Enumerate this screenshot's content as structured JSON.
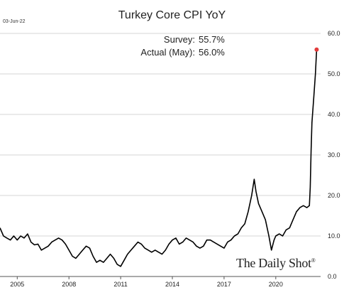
{
  "header": {
    "date": "03-Jun-22"
  },
  "annotations": {
    "survey_label": "Survey:",
    "survey_value": "55.7%",
    "actual_label": "Actual (May):",
    "actual_value": "56.0%"
  },
  "branding": {
    "logo_text": "The Daily Shot",
    "logo_mark": "®"
  },
  "colors": {
    "line": "#000000",
    "marker": "#e23b3b",
    "gridline": "#c8c8c8"
  },
  "chart_data": {
    "type": "line",
    "title": "Turkey Core CPI YoY",
    "xlabel": "",
    "ylabel": "",
    "xlim": [
      2004.0,
      2022.6
    ],
    "ylim": [
      0,
      60
    ],
    "x_ticks": [
      2005,
      2008,
      2011,
      2014,
      2017,
      2020
    ],
    "y_ticks": [
      0.0,
      10.0,
      20.0,
      30.0,
      40.0,
      50.0,
      60.0
    ],
    "y_axis_side": "right",
    "grid": "horizontal",
    "series": [
      {
        "name": "",
        "x": [
          2004.0,
          2004.2,
          2004.4,
          2004.6,
          2004.8,
          2005.0,
          2005.2,
          2005.4,
          2005.6,
          2005.8,
          2006.0,
          2006.2,
          2006.4,
          2006.6,
          2006.8,
          2007.0,
          2007.2,
          2007.4,
          2007.6,
          2007.8,
          2008.0,
          2008.2,
          2008.4,
          2008.6,
          2008.8,
          2009.0,
          2009.2,
          2009.4,
          2009.6,
          2009.8,
          2010.0,
          2010.2,
          2010.4,
          2010.6,
          2010.8,
          2011.0,
          2011.2,
          2011.4,
          2011.6,
          2011.8,
          2012.0,
          2012.2,
          2012.4,
          2012.6,
          2012.8,
          2013.0,
          2013.2,
          2013.4,
          2013.6,
          2013.8,
          2014.0,
          2014.2,
          2014.4,
          2014.6,
          2014.8,
          2015.0,
          2015.2,
          2015.4,
          2015.6,
          2015.8,
          2016.0,
          2016.2,
          2016.4,
          2016.6,
          2016.8,
          2017.0,
          2017.2,
          2017.4,
          2017.6,
          2017.8,
          2018.0,
          2018.2,
          2018.4,
          2018.6,
          2018.75,
          2018.85,
          2019.0,
          2019.2,
          2019.4,
          2019.6,
          2019.75,
          2019.9,
          2020.0,
          2020.2,
          2020.4,
          2020.6,
          2020.8,
          2021.0,
          2021.2,
          2021.4,
          2021.6,
          2021.8,
          2021.95,
          2022.0,
          2022.05,
          2022.1,
          2022.2,
          2022.3,
          2022.37
        ],
        "values": [
          12.0,
          10.0,
          9.5,
          9.0,
          10.0,
          9.0,
          10.0,
          9.5,
          10.5,
          8.5,
          7.8,
          8.0,
          6.5,
          7.0,
          7.5,
          8.5,
          9.0,
          9.5,
          9.0,
          8.0,
          6.5,
          5.0,
          4.5,
          5.5,
          6.5,
          7.5,
          7.0,
          5.0,
          3.5,
          4.0,
          3.5,
          4.5,
          5.5,
          4.5,
          3.0,
          2.5,
          4.0,
          5.5,
          6.5,
          7.5,
          8.5,
          8.0,
          7.0,
          6.5,
          6.0,
          6.5,
          6.0,
          5.5,
          6.5,
          8.0,
          9.0,
          9.5,
          8.0,
          8.5,
          9.5,
          9.0,
          8.5,
          7.5,
          7.0,
          7.5,
          9.0,
          9.0,
          8.5,
          8.0,
          7.5,
          7.0,
          8.5,
          9.0,
          10.0,
          10.5,
          12.0,
          13.0,
          16.0,
          20.0,
          24.0,
          21.0,
          18.0,
          16.0,
          14.0,
          10.0,
          6.5,
          9.0,
          10.0,
          10.5,
          10.0,
          11.5,
          12.0,
          14.0,
          16.0,
          17.0,
          17.5,
          17.0,
          17.5,
          22.0,
          31.0,
          38.0,
          44.0,
          50.0,
          56.0
        ]
      }
    ],
    "markers": [
      {
        "x": 2022.37,
        "y": 56.0,
        "color": "#e23b3b"
      }
    ]
  }
}
